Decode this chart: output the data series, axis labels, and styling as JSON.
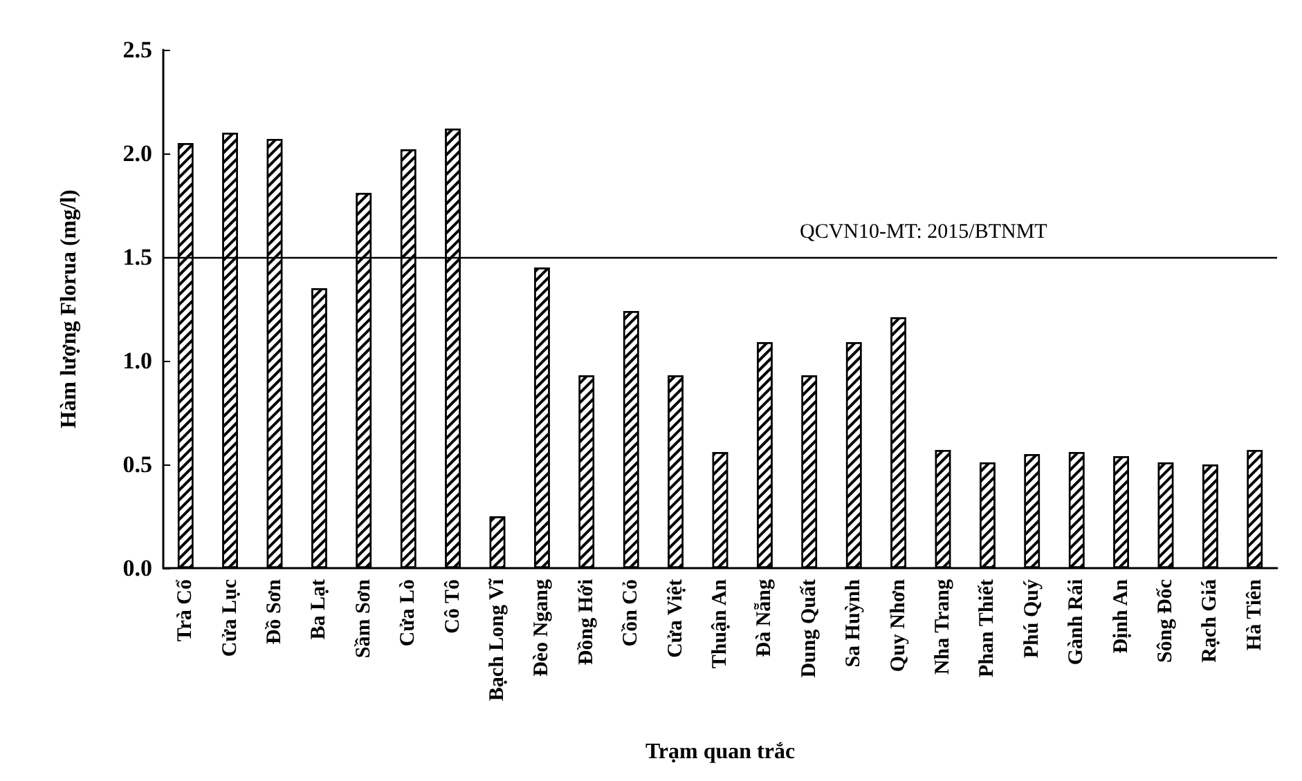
{
  "chart_data": {
    "type": "bar",
    "xlabel": "Trạm quan trắc",
    "ylabel": "Hàm lượng Florua (mg/l)",
    "categories": [
      "Trà Cổ",
      "Cửa Lục",
      "Đồ Sơn",
      "Ba Lạt",
      "Sầm Sơn",
      "Cửa Lò",
      "Cô Tô",
      "Bạch Long Vĩ",
      "Đèo Ngang",
      "Đồng Hới",
      "Cồn Cỏ",
      "Cửa Việt",
      "Thuận An",
      "Đà Nẵng",
      "Dung Quất",
      "Sa Huỳnh",
      "Quy Nhơn",
      "Nha Trang",
      "Phan Thiết",
      "Phú Quý",
      "Gành Rái",
      "Định An",
      "Sông Đốc",
      "Rạch Giá",
      "Hà Tiên"
    ],
    "values": [
      2.05,
      2.1,
      2.07,
      1.35,
      1.81,
      2.02,
      2.12,
      0.25,
      1.45,
      0.93,
      1.24,
      0.93,
      0.56,
      1.09,
      0.93,
      1.09,
      1.21,
      0.57,
      0.51,
      0.55,
      0.56,
      0.54,
      0.51,
      0.5,
      0.57
    ],
    "color": "#ffffff",
    "ylim": [
      0,
      2.5
    ],
    "yticks": [
      {
        "value": 0,
        "label": "0.0"
      },
      {
        "value": 0.5,
        "label": "0.5"
      },
      {
        "value": 1,
        "label": "1.0"
      },
      {
        "value": 1.5,
        "label": "1.5"
      },
      {
        "value": 2,
        "label": "2.0"
      },
      {
        "value": 2.5,
        "label": "2.5"
      }
    ],
    "ref_lines": [
      {
        "axis": "y",
        "value": 1.5,
        "color": "#000000"
      }
    ],
    "annotations": [
      {
        "text": "QCVN10-MT: 2015/BTNMT",
        "y": 1.5
      }
    ],
    "grid": false
  }
}
